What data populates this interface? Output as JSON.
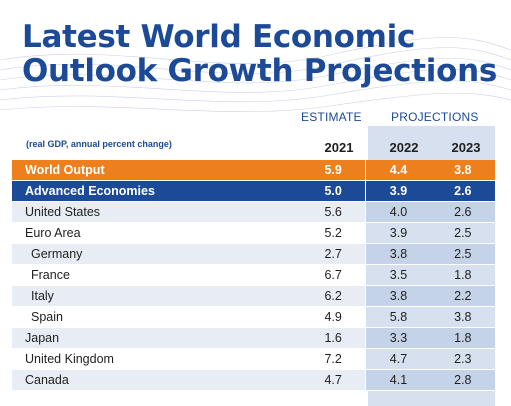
{
  "title": {
    "line1": "Latest World Economic",
    "line2": "Outlook Growth Projections"
  },
  "headers": {
    "estimate": "ESTIMATE",
    "projections": "PROJECTIONS",
    "note": "(real GDP, annual percent change)"
  },
  "colors": {
    "brand_blue": "#1c4a97",
    "orange": "#ee7f1d",
    "row_light": "#e7ecf5",
    "proj_col": "#d6e0ef"
  },
  "chart_data": {
    "type": "table",
    "title": "Latest World Economic Outlook Growth Projections",
    "columns": [
      "2021",
      "2022",
      "2023"
    ],
    "rows": [
      {
        "name": "World Output",
        "values": [
          "5.9",
          "4.4",
          "3.8"
        ]
      },
      {
        "name": "Advanced Economies",
        "values": [
          "5.0",
          "3.9",
          "2.6"
        ]
      },
      {
        "name": "United States",
        "values": [
          "5.6",
          "4.0",
          "2.6"
        ]
      },
      {
        "name": "Euro Area",
        "values": [
          "5.2",
          "3.9",
          "2.5"
        ]
      },
      {
        "name": "Germany",
        "values": [
          "2.7",
          "3.8",
          "2.5"
        ]
      },
      {
        "name": "France",
        "values": [
          "6.7",
          "3.5",
          "1.8"
        ]
      },
      {
        "name": "Italy",
        "values": [
          "6.2",
          "3.8",
          "2.2"
        ]
      },
      {
        "name": "Spain",
        "values": [
          "4.9",
          "5.8",
          "3.8"
        ]
      },
      {
        "name": "Japan",
        "values": [
          "1.6",
          "3.3",
          "1.8"
        ]
      },
      {
        "name": "United Kingdom",
        "values": [
          "7.2",
          "4.7",
          "2.3"
        ]
      },
      {
        "name": "Canada",
        "values": [
          "4.7",
          "4.1",
          "2.8"
        ]
      }
    ]
  }
}
